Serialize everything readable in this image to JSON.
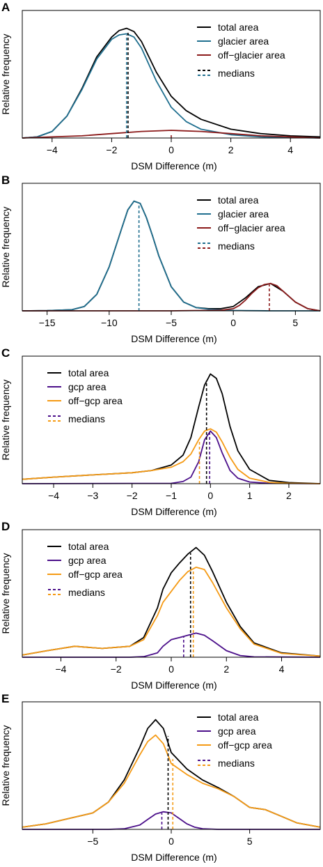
{
  "colors": {
    "total": "#000000",
    "glacier": "#1f6f8f",
    "off_glacier": "#8b1a1a",
    "gcp": "#4b0f8a",
    "off_gcp": "#f59a14"
  },
  "chart_data": [
    {
      "panel_letter": "A",
      "type": "line",
      "xlabel": "DSM Difference (m)",
      "ylabel": "Relative frequency",
      "xlim": [
        -5,
        5
      ],
      "ylim": [
        0,
        1
      ],
      "xticks": [
        -4,
        -2,
        0,
        2,
        4
      ],
      "xtick_labels": [
        "−4",
        "−2",
        "0",
        "2",
        "4"
      ],
      "y_axis_ticks": false,
      "legend_position": "top-right",
      "legend": [
        {
          "label": "total area",
          "series": "total"
        },
        {
          "label": "glacier area",
          "series": "glacier"
        },
        {
          "label": "off−glacier area",
          "series": "off_glacier"
        }
      ],
      "medians_label": "medians",
      "median_colors": [
        "total",
        "glacier"
      ],
      "series": [
        {
          "key": "total",
          "x": [
            -5,
            -4.5,
            -4,
            -3.5,
            -3,
            -2.5,
            -2,
            -1.75,
            -1.5,
            -1.25,
            -1,
            -0.5,
            0,
            0.5,
            1,
            2,
            3,
            4,
            5
          ],
          "y": [
            0,
            0.01,
            0.06,
            0.2,
            0.45,
            0.74,
            0.92,
            0.98,
            1,
            0.97,
            0.88,
            0.6,
            0.38,
            0.25,
            0.17,
            0.08,
            0.04,
            0.02,
            0.01
          ]
        },
        {
          "key": "glacier",
          "x": [
            -5,
            -4.5,
            -4,
            -3.5,
            -3,
            -2.5,
            -2,
            -1.75,
            -1.5,
            -1.25,
            -1,
            -0.5,
            0,
            0.5,
            1,
            2,
            3,
            4,
            5
          ],
          "y": [
            0,
            0.01,
            0.06,
            0.2,
            0.44,
            0.72,
            0.9,
            0.94,
            0.95,
            0.92,
            0.82,
            0.52,
            0.28,
            0.15,
            0.08,
            0.03,
            0.01,
            0.005,
            0
          ]
        },
        {
          "key": "off_glacier",
          "x": [
            -5,
            -4,
            -3,
            -2,
            -1,
            0,
            1,
            2,
            3,
            4,
            5
          ],
          "y": [
            0,
            0.01,
            0.02,
            0.04,
            0.06,
            0.07,
            0.06,
            0.04,
            0.02,
            0.01,
            0
          ]
        }
      ],
      "medians": [
        {
          "series": "total",
          "x": -1.45,
          "y": 0.97
        },
        {
          "series": "glacier",
          "x": -1.5,
          "y": 0.94
        },
        {
          "series": "off_glacier",
          "x": 0.0,
          "y": 0.04
        }
      ]
    },
    {
      "panel_letter": "B",
      "type": "line",
      "xlabel": "DSM Difference (m)",
      "ylabel": "Relative frequency",
      "xlim": [
        -17,
        7
      ],
      "ylim": [
        0,
        1
      ],
      "xticks": [
        -15,
        -10,
        -5,
        0,
        5
      ],
      "xtick_labels": [
        "−15",
        "−10",
        "−5",
        "0",
        "5"
      ],
      "y_axis_ticks": false,
      "legend_position": "top-right",
      "legend": [
        {
          "label": "total area",
          "series": "total"
        },
        {
          "label": "glacier area",
          "series": "glacier"
        },
        {
          "label": "off−glacier area",
          "series": "off_glacier"
        }
      ],
      "medians_label": "medians",
      "median_colors": [
        "glacier",
        "off_glacier"
      ],
      "series": [
        {
          "key": "total",
          "x": [
            -17,
            -15,
            -13,
            -12,
            -11,
            -10,
            -9,
            -8.5,
            -8,
            -7.5,
            -7,
            -6.5,
            -6,
            -5,
            -4,
            -3,
            -2,
            -1,
            0,
            1,
            2,
            3,
            4,
            5,
            6,
            7
          ],
          "y": [
            0,
            0.002,
            0.01,
            0.04,
            0.15,
            0.4,
            0.75,
            0.92,
            1,
            0.98,
            0.85,
            0.68,
            0.5,
            0.22,
            0.08,
            0.03,
            0.02,
            0.02,
            0.04,
            0.12,
            0.22,
            0.25,
            0.18,
            0.08,
            0.02,
            0
          ]
        },
        {
          "key": "glacier",
          "x": [
            -17,
            -15,
            -13,
            -12,
            -11,
            -10,
            -9,
            -8.5,
            -8,
            -7.5,
            -7,
            -6.5,
            -6,
            -5,
            -4,
            -3,
            -2,
            -1,
            0,
            1,
            2,
            3,
            7
          ],
          "y": [
            0,
            0.002,
            0.01,
            0.04,
            0.15,
            0.4,
            0.75,
            0.92,
            1,
            0.98,
            0.85,
            0.68,
            0.5,
            0.22,
            0.08,
            0.03,
            0.015,
            0.008,
            0.004,
            0.002,
            0.001,
            0,
            0
          ]
        },
        {
          "key": "off_glacier",
          "x": [
            -17,
            -5,
            -1,
            0,
            0.5,
            1,
            1.5,
            2,
            2.5,
            3,
            3.5,
            4,
            4.5,
            5,
            6,
            7
          ],
          "y": [
            0,
            0,
            0.005,
            0.02,
            0.05,
            0.1,
            0.16,
            0.21,
            0.24,
            0.25,
            0.23,
            0.18,
            0.13,
            0.08,
            0.02,
            0
          ]
        }
      ],
      "medians": [
        {
          "series": "glacier",
          "x": -7.6,
          "y": 0.97
        },
        {
          "series": "off_glacier",
          "x": 2.9,
          "y": 0.24
        }
      ]
    },
    {
      "panel_letter": "C",
      "type": "line",
      "xlabel": "DSM Difference (m)",
      "ylabel": "Relative frequency",
      "xlim": [
        -4.8,
        2.8
      ],
      "ylim": [
        0,
        1
      ],
      "xticks": [
        -4,
        -3,
        -2,
        -1,
        0,
        1,
        2
      ],
      "xtick_labels": [
        "−4",
        "−3",
        "−2",
        "−1",
        "0",
        "1",
        "2"
      ],
      "y_axis_ticks": false,
      "legend_position": "top-left",
      "legend": [
        {
          "label": "total area",
          "series": "total"
        },
        {
          "label": "gcp area",
          "series": "gcp"
        },
        {
          "label": "off−gcp area",
          "series": "off_gcp"
        }
      ],
      "medians_label": "medians",
      "median_colors": [
        "gcp",
        "off_gcp"
      ],
      "series": [
        {
          "key": "total",
          "x": [
            -4.8,
            -4,
            -3,
            -2,
            -1.5,
            -1,
            -0.7,
            -0.5,
            -0.3,
            -0.15,
            0,
            0.15,
            0.3,
            0.5,
            0.7,
            1,
            1.5,
            2,
            2.8
          ],
          "y": [
            0.04,
            0.06,
            0.08,
            0.1,
            0.12,
            0.17,
            0.26,
            0.42,
            0.7,
            0.9,
            1,
            0.96,
            0.82,
            0.52,
            0.3,
            0.13,
            0.03,
            0.01,
            0
          ]
        },
        {
          "key": "gcp",
          "x": [
            -4.8,
            -1,
            -0.7,
            -0.5,
            -0.3,
            -0.15,
            0,
            0.15,
            0.3,
            0.5,
            0.7,
            1,
            1.5,
            2.8
          ],
          "y": [
            0,
            0.003,
            0.02,
            0.06,
            0.2,
            0.4,
            0.48,
            0.42,
            0.28,
            0.12,
            0.05,
            0.015,
            0.003,
            0
          ]
        },
        {
          "key": "off_gcp",
          "x": [
            -4.8,
            -4,
            -3,
            -2,
            -1.5,
            -1,
            -0.7,
            -0.5,
            -0.3,
            -0.15,
            0,
            0.15,
            0.3,
            0.5,
            0.7,
            1,
            1.5,
            2,
            2.8
          ],
          "y": [
            0.04,
            0.06,
            0.08,
            0.1,
            0.12,
            0.15,
            0.2,
            0.27,
            0.4,
            0.48,
            0.5,
            0.47,
            0.38,
            0.24,
            0.13,
            0.05,
            0.012,
            0.004,
            0
          ]
        }
      ],
      "medians": [
        {
          "series": "total",
          "x": -0.1,
          "y": 0.94
        },
        {
          "series": "gcp",
          "x": -0.02,
          "y": 0.47
        },
        {
          "series": "off_gcp",
          "x": -0.28,
          "y": 0.4
        }
      ]
    },
    {
      "panel_letter": "D",
      "type": "line",
      "xlabel": "DSM Difference (m)",
      "ylabel": "Relative frequency",
      "xlim": [
        -5.4,
        5.4
      ],
      "ylim": [
        0,
        1
      ],
      "xticks": [
        -4,
        -2,
        0,
        2,
        4
      ],
      "xtick_labels": [
        "−4",
        "−2",
        "0",
        "2",
        "4"
      ],
      "y_axis_ticks": false,
      "legend_position": "top-left",
      "legend": [
        {
          "label": "total area",
          "series": "total"
        },
        {
          "label": "gcp area",
          "series": "gcp"
        },
        {
          "label": "off−gcp area",
          "series": "off_gcp"
        }
      ],
      "medians_label": "medians",
      "median_colors": [
        "gcp",
        "off_gcp"
      ],
      "series": [
        {
          "key": "total",
          "x": [
            -5.4,
            -4.5,
            -3.5,
            -2.5,
            -1.5,
            -1,
            -0.5,
            -0.3,
            0,
            0.3,
            0.6,
            0.9,
            1.2,
            1.5,
            2,
            2.5,
            3,
            4,
            5.4
          ],
          "y": [
            0.02,
            0.06,
            0.1,
            0.08,
            0.1,
            0.18,
            0.45,
            0.62,
            0.77,
            0.86,
            0.94,
            1,
            0.93,
            0.78,
            0.5,
            0.28,
            0.13,
            0.04,
            0.01
          ]
        },
        {
          "key": "gcp",
          "x": [
            -5.4,
            -1.5,
            -1,
            -0.5,
            -0.3,
            0,
            0.3,
            0.6,
            0.9,
            1.2,
            1.5,
            2,
            2.5,
            3,
            5.4
          ],
          "y": [
            0,
            0,
            0.005,
            0.04,
            0.1,
            0.16,
            0.18,
            0.2,
            0.22,
            0.2,
            0.15,
            0.06,
            0.015,
            0.003,
            0
          ]
        },
        {
          "key": "off_gcp",
          "x": [
            -5.4,
            -4.5,
            -3.5,
            -2.5,
            -1.5,
            -1,
            -0.5,
            -0.3,
            0,
            0.3,
            0.6,
            0.9,
            1.2,
            1.5,
            2,
            2.5,
            3,
            4,
            5.4
          ],
          "y": [
            0.02,
            0.06,
            0.1,
            0.08,
            0.1,
            0.16,
            0.38,
            0.5,
            0.6,
            0.7,
            0.78,
            0.82,
            0.8,
            0.68,
            0.45,
            0.26,
            0.12,
            0.035,
            0.01
          ]
        }
      ],
      "medians": [
        {
          "series": "total",
          "x": 0.7,
          "y": 0.95
        },
        {
          "series": "gcp",
          "x": 0.45,
          "y": 0.19
        },
        {
          "series": "off_gcp",
          "x": 0.8,
          "y": 0.81
        }
      ]
    },
    {
      "panel_letter": "E",
      "type": "line",
      "xlabel": "DSM Difference (m)",
      "ylabel": "Relative frequency",
      "xlim": [
        -9.5,
        9.5
      ],
      "ylim": [
        0,
        1
      ],
      "xticks": [
        -5,
        0,
        5
      ],
      "xtick_labels": [
        "−5",
        "0",
        "5"
      ],
      "y_axis_ticks": false,
      "legend_position": "top-right",
      "legend": [
        {
          "label": "total area",
          "series": "total"
        },
        {
          "label": "gcp area",
          "series": "gcp"
        },
        {
          "label": "off−gcp area",
          "series": "off_gcp"
        }
      ],
      "medians_label": "medians",
      "median_colors": [
        "gcp",
        "off_gcp"
      ],
      "series": [
        {
          "key": "total",
          "x": [
            -9.5,
            -8,
            -6.5,
            -5,
            -4,
            -3,
            -2,
            -1.5,
            -1,
            -0.5,
            0,
            1,
            2,
            3,
            4,
            5,
            6,
            7,
            8,
            9.5
          ],
          "y": [
            0.02,
            0.05,
            0.1,
            0.15,
            0.25,
            0.45,
            0.75,
            0.92,
            1,
            0.92,
            0.7,
            0.55,
            0.45,
            0.38,
            0.3,
            0.2,
            0.18,
            0.12,
            0.06,
            0.02
          ]
        },
        {
          "key": "gcp",
          "x": [
            -9.5,
            -4,
            -3,
            -2,
            -1.5,
            -1,
            -0.5,
            0,
            0.5,
            1,
            1.5,
            2,
            3,
            9.5
          ],
          "y": [
            0,
            0,
            0.005,
            0.04,
            0.09,
            0.14,
            0.16,
            0.15,
            0.1,
            0.05,
            0.02,
            0.006,
            0,
            0
          ]
        },
        {
          "key": "off_gcp",
          "x": [
            -9.5,
            -8,
            -6.5,
            -5,
            -4,
            -3,
            -2,
            -1.5,
            -1,
            -0.5,
            0,
            1,
            2,
            3,
            4,
            5,
            6,
            7,
            8,
            9.5
          ],
          "y": [
            0.02,
            0.05,
            0.1,
            0.15,
            0.25,
            0.42,
            0.68,
            0.8,
            0.86,
            0.78,
            0.6,
            0.5,
            0.42,
            0.37,
            0.3,
            0.2,
            0.18,
            0.12,
            0.06,
            0.02
          ]
        }
      ],
      "medians": [
        {
          "series": "total",
          "x": -0.2,
          "y": 0.85
        },
        {
          "series": "gcp",
          "x": -0.6,
          "y": 0.15
        },
        {
          "series": "off_gcp",
          "x": 0.1,
          "y": 0.64
        }
      ]
    }
  ]
}
